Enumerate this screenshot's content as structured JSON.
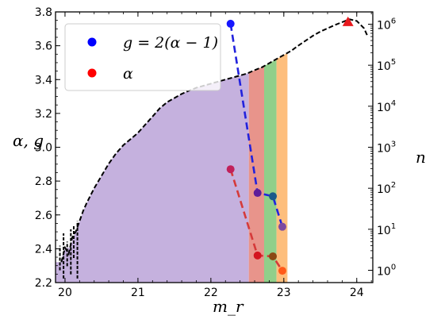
{
  "chart_data": {
    "type": "line",
    "x_label": "m_r",
    "y_left_label": "α, g",
    "y_right_label": "n",
    "x_range": [
      19.87,
      24.22
    ],
    "y_left_range": [
      2.2,
      3.8
    ],
    "y_right_log_range": [
      -0.3,
      6.3
    ],
    "x_ticks": [
      "20",
      "21",
      "22",
      "23",
      "24"
    ],
    "x_tick_values": [
      20,
      21,
      22,
      23,
      24
    ],
    "y_left_ticks": [
      "2.2",
      "2.4",
      "2.6",
      "2.8",
      "3.0",
      "3.2",
      "3.4",
      "3.6",
      "3.8"
    ],
    "y_left_tick_values": [
      2.2,
      2.4,
      2.6,
      2.8,
      3.0,
      3.2,
      3.4,
      3.6,
      3.8
    ],
    "y_right_tick_exponents": [
      0,
      1,
      2,
      3,
      4,
      5,
      6
    ],
    "y_right_tick_base": "10",
    "legend": {
      "placement": "upper-left",
      "entries": [
        {
          "label": "g = 2(α − 1)",
          "color": "#0000ff"
        },
        {
          "label": "α",
          "color": "#ff0000"
        }
      ]
    },
    "bands": [
      {
        "from": 19.87,
        "to": 22.52,
        "color": "#c5b1de"
      },
      {
        "from": 22.52,
        "to": 22.73,
        "color": "#e8948b"
      },
      {
        "from": 22.73,
        "to": 22.9,
        "color": "#90cf8a"
      },
      {
        "from": 22.9,
        "to": 23.05,
        "color": "#fdbe7d"
      }
    ],
    "counts_curve": {
      "x": [
        19.95,
        20.0,
        20.05,
        20.1,
        20.15,
        20.2,
        20.25,
        20.3,
        20.4,
        20.5,
        20.6,
        20.7,
        20.8,
        20.9,
        21.0,
        21.1,
        21.2,
        21.3,
        21.4,
        21.5,
        21.6,
        21.7,
        21.8,
        21.9,
        22.0,
        22.1,
        22.2,
        22.3,
        22.4,
        22.5,
        22.6,
        22.7,
        22.8,
        22.9,
        23.0,
        23.1,
        23.2,
        23.3,
        23.4,
        23.5,
        23.6,
        23.7,
        23.8,
        23.9,
        24.0,
        24.1,
        24.15
      ],
      "log10_n": [
        0.2,
        0.55,
        0.4,
        0.8,
        0.95,
        1.2,
        1.45,
        1.65,
        2.0,
        2.3,
        2.6,
        2.85,
        3.05,
        3.2,
        3.35,
        3.55,
        3.75,
        3.95,
        4.1,
        4.2,
        4.3,
        4.38,
        4.45,
        4.5,
        4.55,
        4.6,
        4.65,
        4.7,
        4.75,
        4.8,
        4.88,
        4.95,
        5.05,
        5.15,
        5.25,
        5.35,
        5.48,
        5.6,
        5.72,
        5.82,
        5.9,
        5.98,
        6.05,
        6.12,
        6.08,
        5.9,
        5.7
      ],
      "color": "#000000",
      "style": "dashed"
    },
    "peak_marker": {
      "x": 23.88,
      "log10_n": 6.05,
      "color": "#e8191e",
      "shape": "triangle"
    },
    "series": [
      {
        "name": "g = 2(α − 1)",
        "x": [
          22.27,
          22.64,
          22.85,
          22.98
        ],
        "y": [
          3.73,
          2.73,
          2.71,
          2.53
        ],
        "colors": [
          "#1616ff",
          "#5e1d9a",
          "#1b5a8a",
          "#7e4aa0"
        ],
        "line_color": "#2222dd"
      },
      {
        "name": "α",
        "x": [
          22.27,
          22.64,
          22.85,
          22.98
        ],
        "y": [
          2.87,
          2.36,
          2.355,
          2.27
        ],
        "colors": [
          "#c1205a",
          "#d4141e",
          "#8a4a14",
          "#ff5a1a"
        ],
        "line_color": "#d53a3a"
      }
    ]
  }
}
